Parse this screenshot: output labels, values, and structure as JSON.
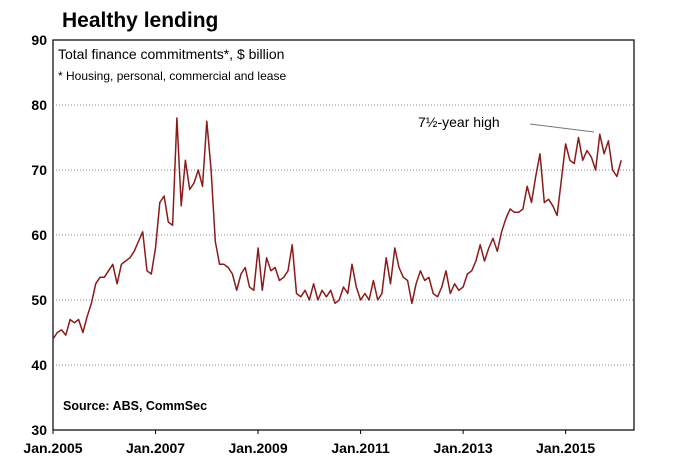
{
  "chart_data": {
    "type": "line",
    "title": "Healthy lending",
    "subtitle": "Total finance commitments*, $ billion",
    "footnote": "* Housing, personal, commercial and lease",
    "source": "Source: ABS, CommSec",
    "annotation": "7½-year high",
    "xlabel": "",
    "ylabel": "",
    "ylim": [
      30,
      90
    ],
    "yticks": [
      30,
      40,
      50,
      60,
      70,
      80,
      90
    ],
    "xticks": [
      "Jan.2005",
      "Jan.2007",
      "Jan.2009",
      "Jan.2011",
      "Jan.2013",
      "Jan.2015"
    ],
    "xrange_months": [
      0,
      136
    ],
    "grid": true,
    "line_color": "#8b1a1a",
    "series": [
      {
        "values": [
          44.0,
          45.0,
          45.4,
          44.6,
          47.0,
          46.5,
          47.0,
          45.0,
          47.5,
          49.5,
          52.5,
          53.5,
          53.5,
          54.5,
          55.5,
          52.5,
          55.5,
          56.0,
          56.5,
          57.5,
          59.0,
          60.5,
          54.5,
          54.0,
          58.0,
          65.0,
          66.0,
          62.0,
          61.5,
          78.0,
          64.5,
          71.5,
          67.0,
          68.0,
          70.0,
          67.5,
          77.5,
          70.0,
          59.0,
          55.5,
          55.5,
          55.0,
          54.0,
          51.5,
          54.0,
          55.0,
          52.0,
          51.5,
          58.0,
          51.5,
          56.5,
          54.5,
          55.0,
          53.0,
          53.5,
          54.5,
          58.5,
          51.0,
          50.5,
          51.5,
          50.0,
          52.5,
          50.0,
          51.5,
          50.5,
          51.5,
          49.5,
          50.0,
          52.0,
          51.0,
          55.5,
          52.0,
          50.0,
          51.0,
          50.0,
          53.0,
          50.0,
          51.0,
          56.5,
          52.5,
          58.0,
          55.0,
          53.5,
          53.0,
          49.5,
          52.5,
          54.5,
          53.0,
          53.5,
          51.0,
          50.5,
          52.0,
          54.5,
          51.0,
          52.5,
          51.5,
          52.0,
          54.0,
          54.5,
          56.0,
          58.5,
          56.0,
          58.0,
          59.5,
          57.5,
          60.5,
          62.5,
          64.0,
          63.5,
          63.5,
          64.0,
          67.5,
          65.0,
          69.0,
          72.5,
          65.0,
          65.5,
          64.5,
          63.0,
          68.5,
          74.0,
          71.5,
          71.0,
          75.0,
          71.5,
          73.0,
          72.0,
          70.0,
          75.5,
          72.5,
          74.5,
          70.0,
          69.0,
          71.5
        ]
      }
    ]
  }
}
